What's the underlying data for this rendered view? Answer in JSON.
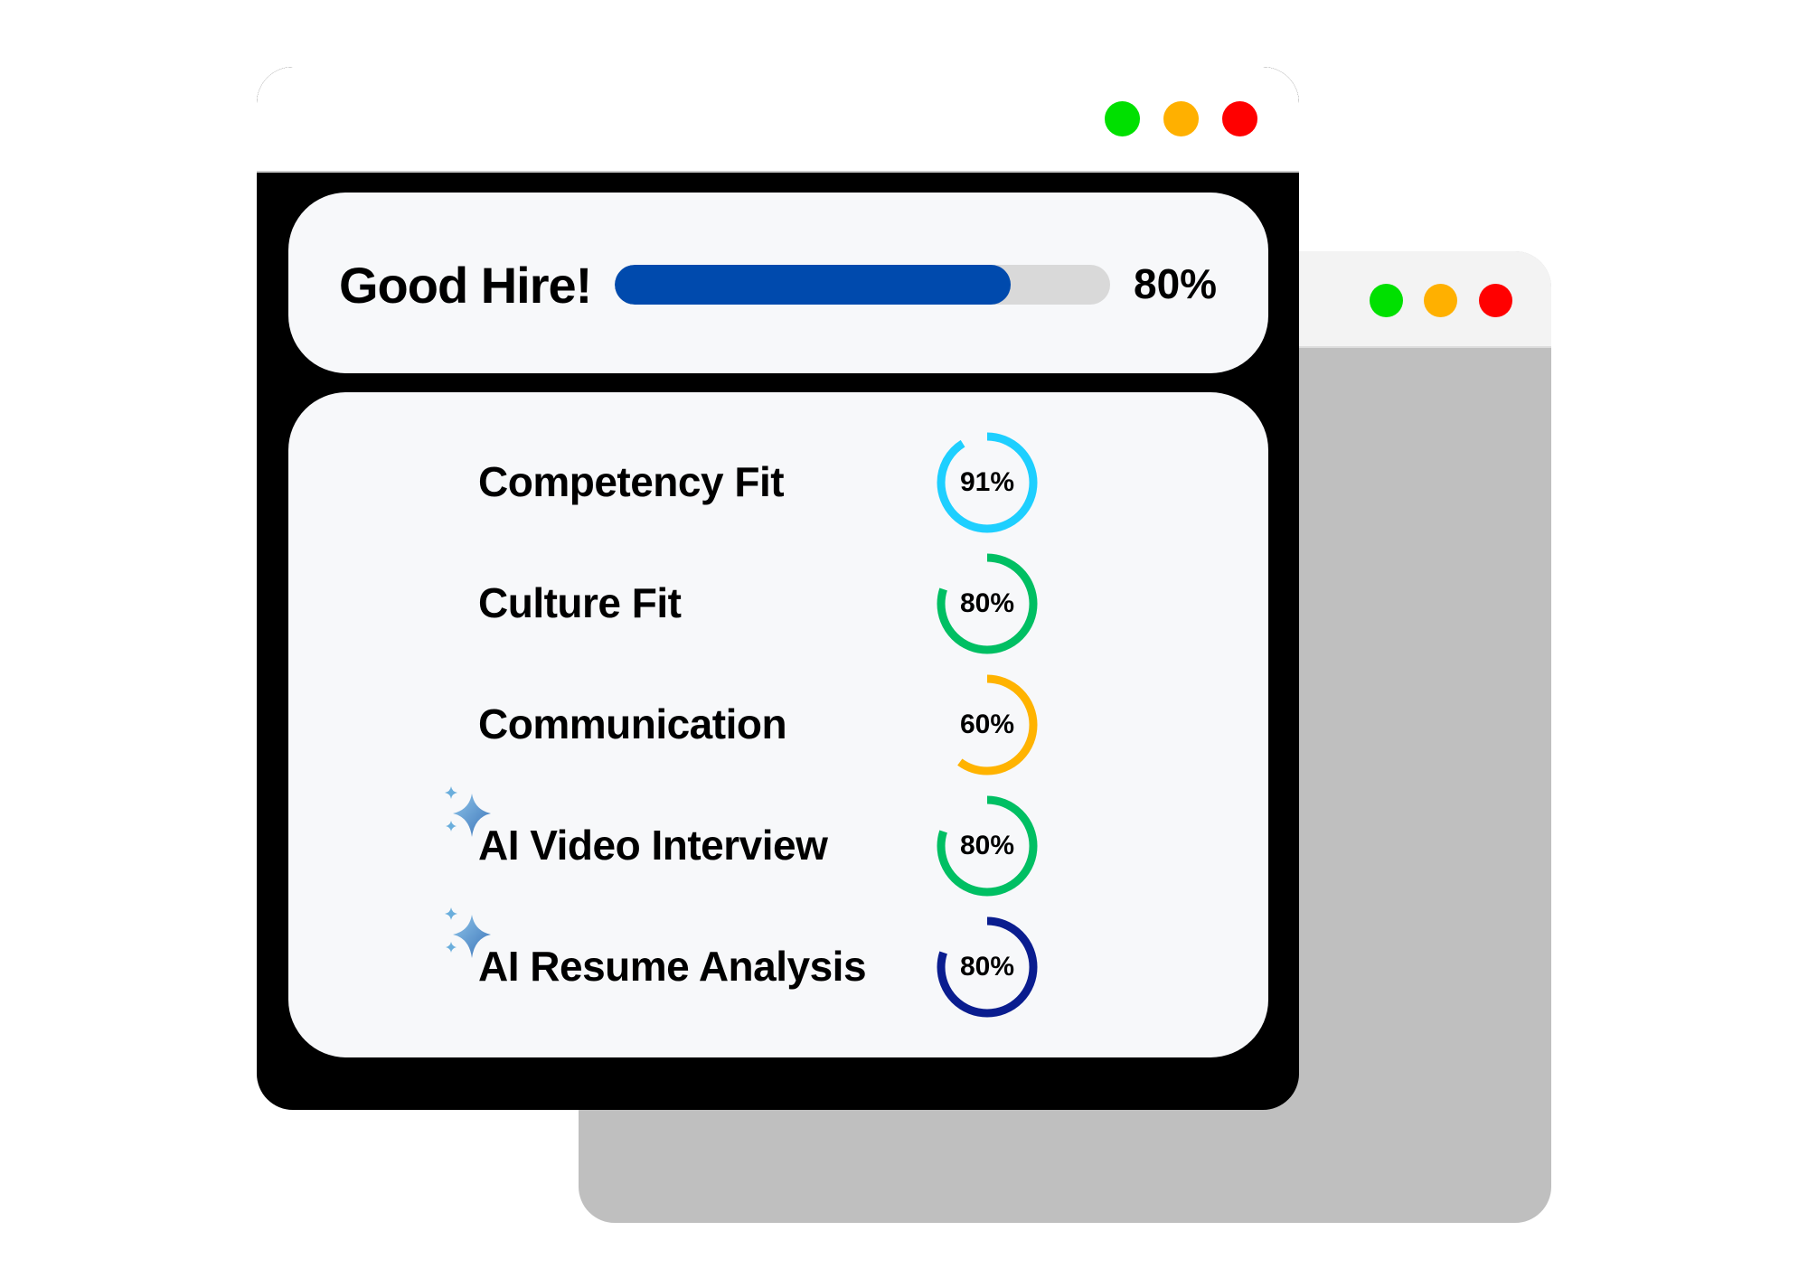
{
  "window_controls": {
    "green": "#00e000",
    "orange": "#ffb000",
    "red": "#ff0000"
  },
  "summary": {
    "title": "Good Hire!",
    "value_label": "80%",
    "progress": 80,
    "bar_color": "#004aad"
  },
  "metrics": [
    {
      "label": "Competency Fit",
      "value_label": "91%",
      "value": 91,
      "color": "#1ecfff",
      "ai": false
    },
    {
      "label": "Culture Fit",
      "value_label": "80%",
      "value": 80,
      "color": "#00bf63",
      "ai": false
    },
    {
      "label": "Communication",
      "value_label": "60%",
      "value": 60,
      "color": "#ffb300",
      "ai": false
    },
    {
      "label": "AI Video Interview",
      "value_label": "80%",
      "value": 80,
      "color": "#00bf63",
      "ai": true,
      "icon": "sparkle-icon"
    },
    {
      "label": "AI Resume Analysis",
      "value_label": "80%",
      "value": 80,
      "color": "#0a1d8f",
      "ai": true,
      "icon": "sparkle-icon"
    }
  ]
}
